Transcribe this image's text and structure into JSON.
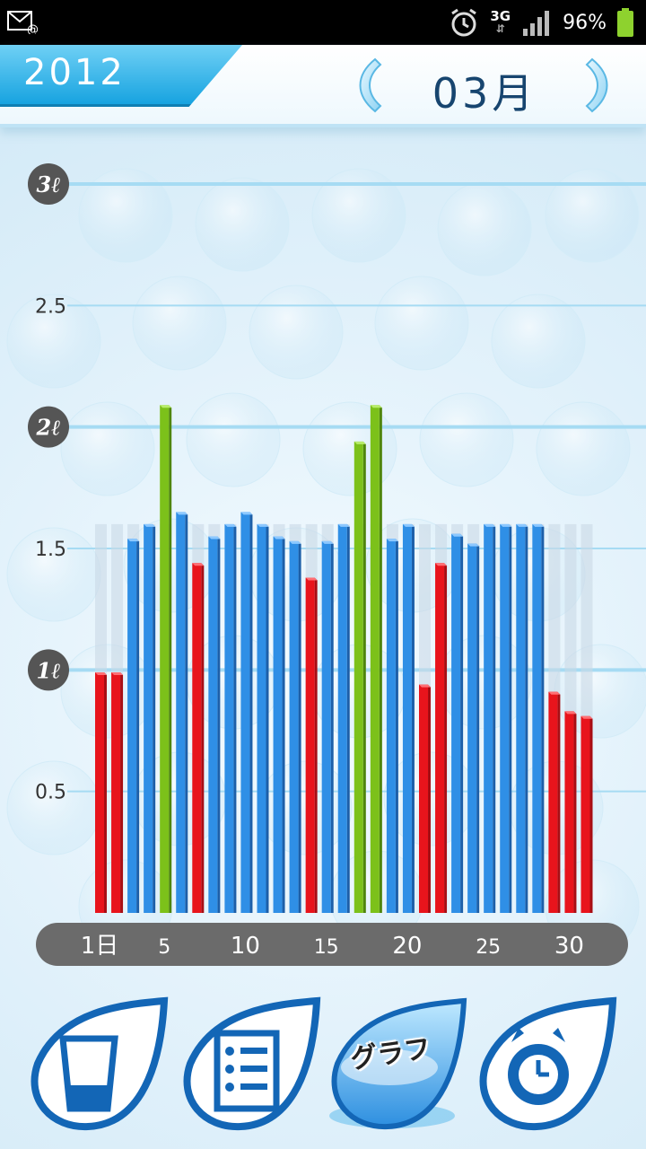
{
  "status_bar": {
    "network": "3G",
    "battery": "96%",
    "icons": [
      "mail-icon",
      "alarm-icon",
      "signal-icon",
      "battery-icon"
    ]
  },
  "header": {
    "year": "2012",
    "month": "03月"
  },
  "colors": {
    "red": "#e8141c",
    "blue": "#2f8fe6",
    "green": "#7cc11a",
    "target_band": "#c9d9e6",
    "grid": "#a6dbf3",
    "x_axis_bar": "#6b6b6b"
  },
  "chart_data": {
    "type": "bar",
    "title": "",
    "xlabel": "",
    "ylabel": "",
    "ylim": [
      0,
      3
    ],
    "y_ticks": [
      {
        "value": 3,
        "label": "3ℓ",
        "style": "badge"
      },
      {
        "value": 2.5,
        "label": "2.5",
        "style": "plain"
      },
      {
        "value": 2,
        "label": "2ℓ",
        "style": "badge"
      },
      {
        "value": 1.5,
        "label": "1.5",
        "style": "plain"
      },
      {
        "value": 1,
        "label": "1ℓ",
        "style": "badge"
      },
      {
        "value": 0.5,
        "label": "0.5",
        "style": "plain"
      }
    ],
    "x_ticks": [
      {
        "day": 1,
        "label": "1日"
      },
      {
        "day": 5,
        "label": "5"
      },
      {
        "day": 10,
        "label": "10"
      },
      {
        "day": 15,
        "label": "15"
      },
      {
        "day": 20,
        "label": "20"
      },
      {
        "day": 25,
        "label": "25"
      },
      {
        "day": 30,
        "label": "30"
      }
    ],
    "target": 1.6,
    "days": [
      1,
      2,
      3,
      4,
      5,
      6,
      7,
      8,
      9,
      10,
      11,
      12,
      13,
      14,
      15,
      16,
      17,
      18,
      19,
      20,
      21,
      22,
      23,
      24,
      25,
      26,
      27,
      28,
      29,
      30,
      31
    ],
    "values": [
      0.99,
      0.99,
      1.54,
      1.6,
      2.09,
      1.65,
      1.44,
      1.55,
      1.6,
      1.65,
      1.6,
      1.55,
      1.53,
      1.38,
      1.53,
      1.6,
      1.94,
      2.09,
      1.54,
      1.6,
      0.94,
      1.44,
      1.56,
      1.52,
      1.6,
      1.6,
      1.6,
      1.6,
      0.91,
      0.83,
      0.81
    ],
    "status": [
      "low",
      "low",
      "ok",
      "ok",
      "high",
      "ok",
      "low",
      "ok",
      "ok",
      "ok",
      "ok",
      "ok",
      "ok",
      "low",
      "ok",
      "ok",
      "high",
      "high",
      "ok",
      "ok",
      "low",
      "low",
      "ok",
      "ok",
      "ok",
      "ok",
      "ok",
      "ok",
      "low",
      "low",
      "low"
    ],
    "legend_colors": {
      "low": "red",
      "ok": "blue",
      "high": "green"
    }
  },
  "nav": {
    "items": [
      {
        "icon": "cup-icon",
        "label": ""
      },
      {
        "icon": "list-icon",
        "label": ""
      },
      {
        "icon": "water-bowl-icon",
        "label": "グラフ"
      },
      {
        "icon": "alarm-clock-icon",
        "label": ""
      }
    ]
  }
}
